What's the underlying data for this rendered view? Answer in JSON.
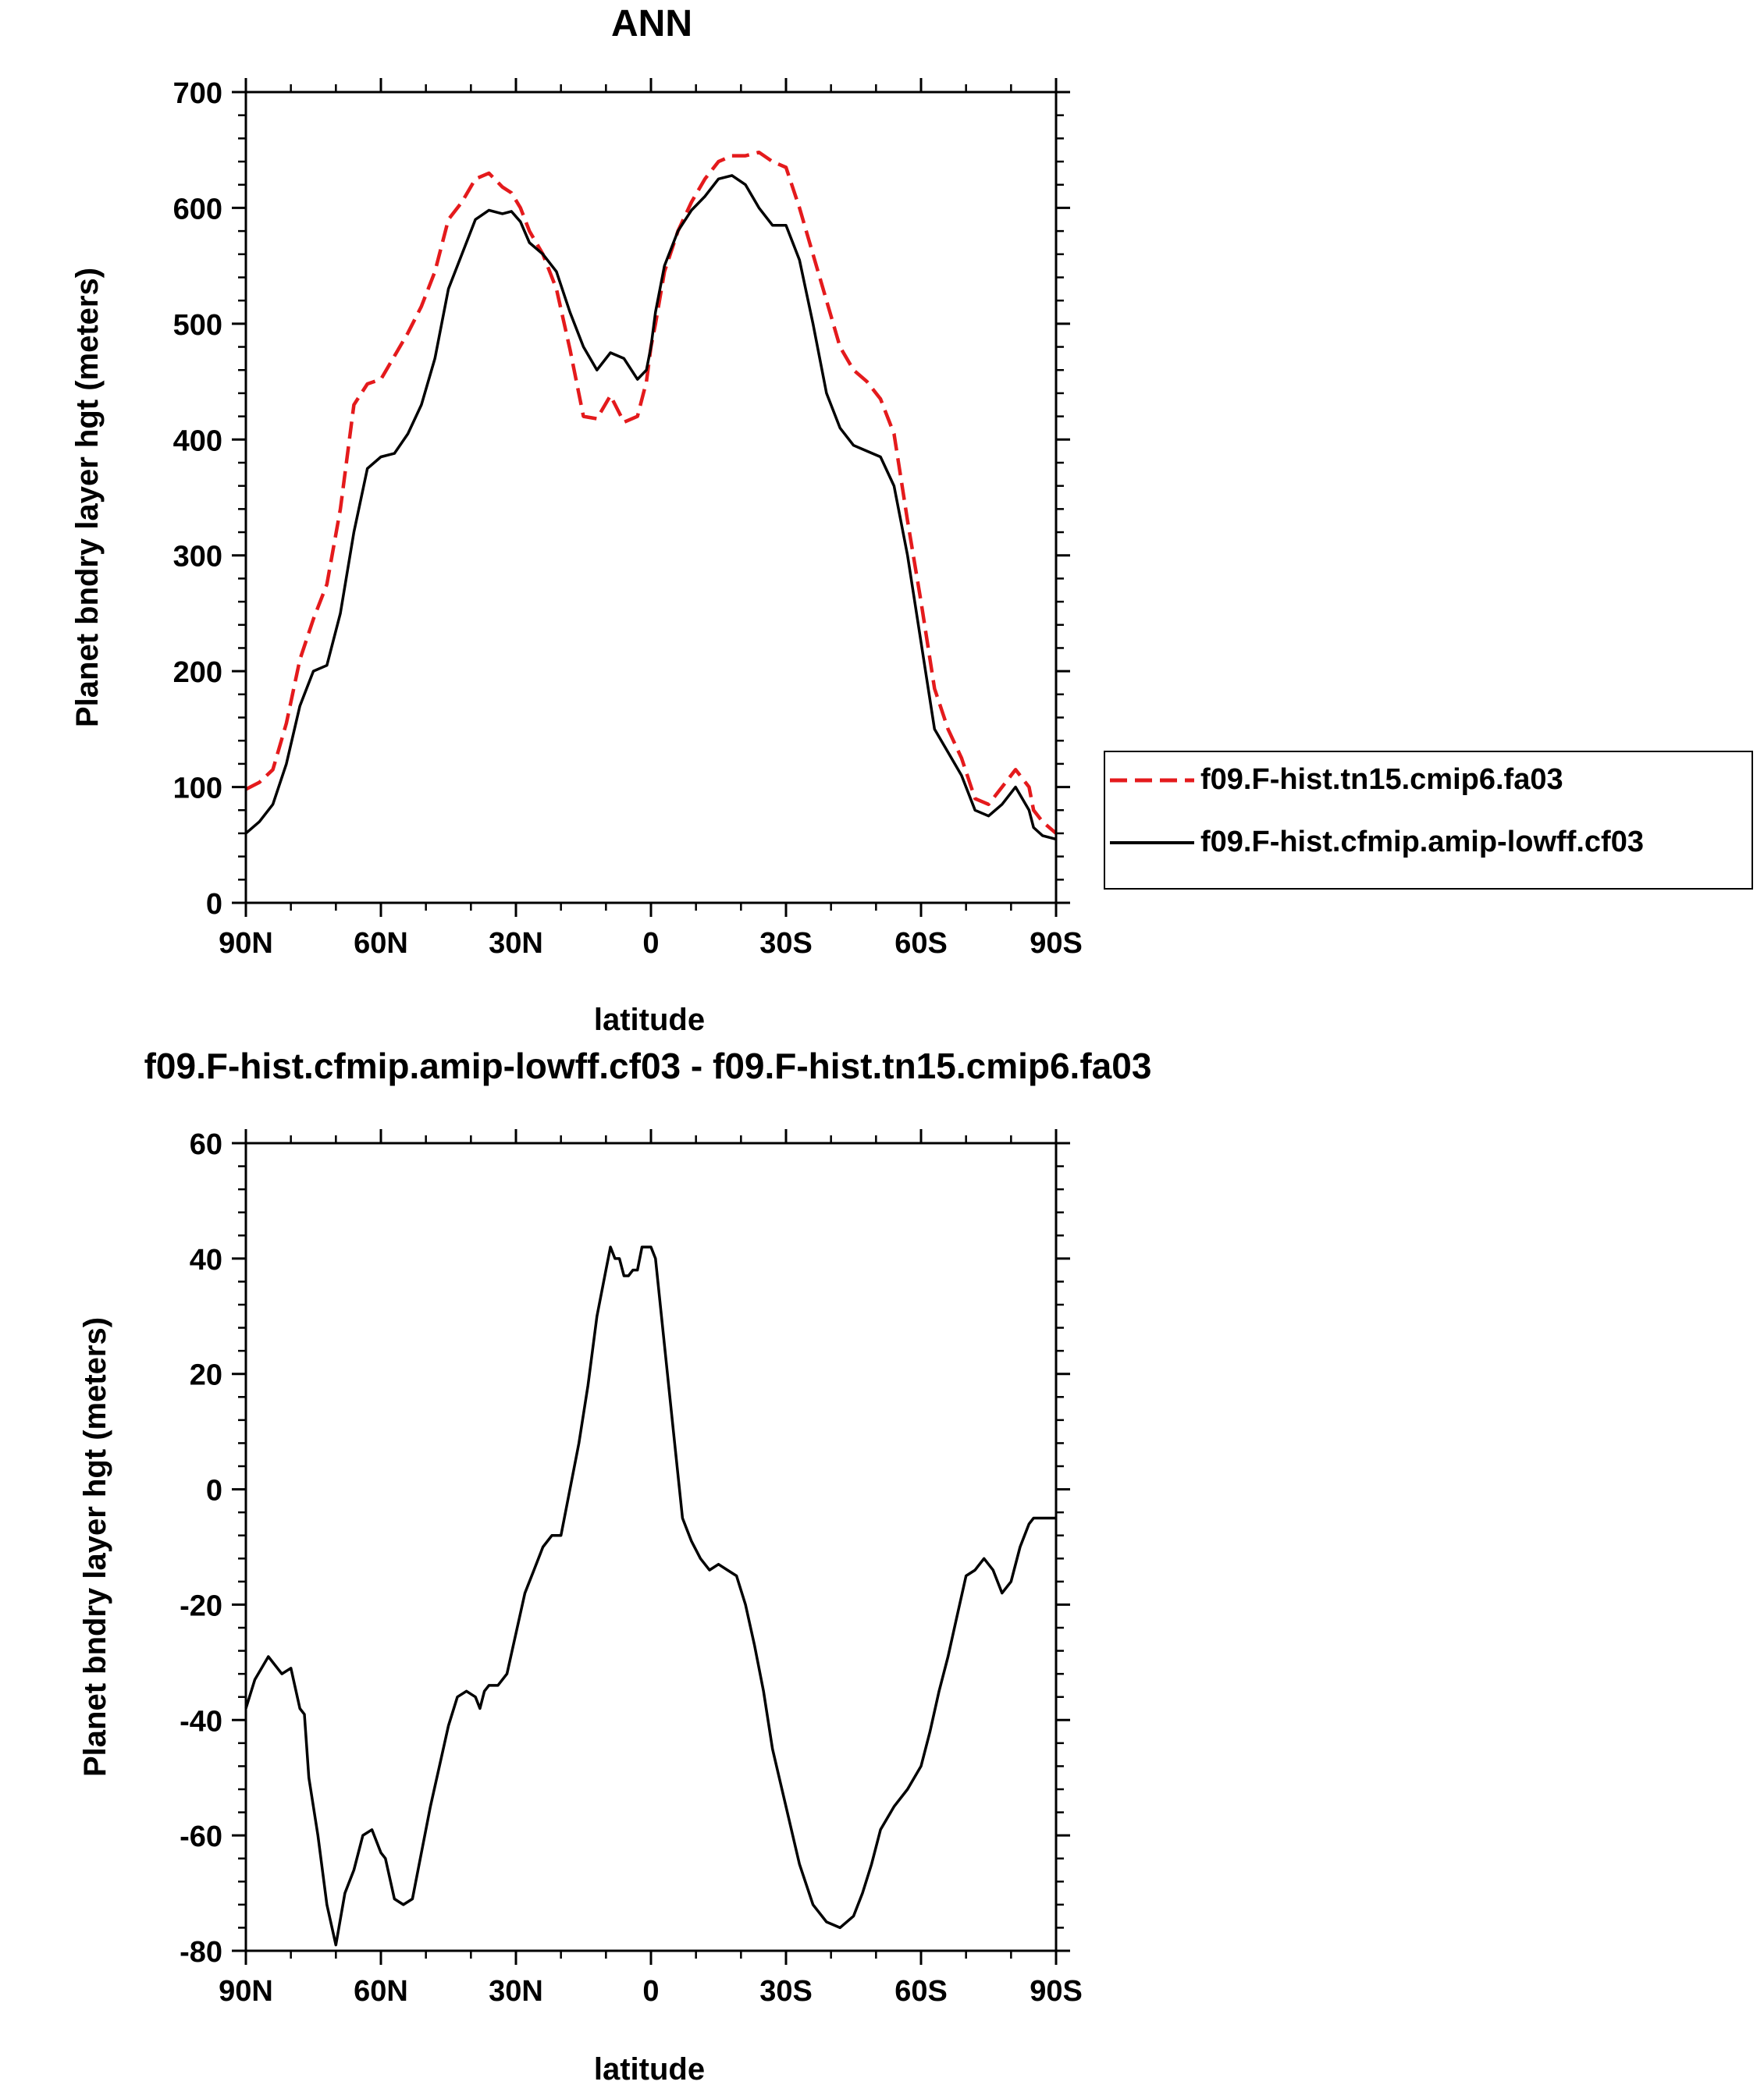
{
  "chart_data": [
    {
      "type": "line",
      "title": "ANN",
      "xlabel": "latitude",
      "ylabel": "Planet bndry layer hgt (meters)",
      "xlim": [
        90,
        -90
      ],
      "ylim": [
        0,
        700
      ],
      "xtick_values": [
        90,
        60,
        30,
        0,
        -30,
        -60,
        -90
      ],
      "xtick_labels": [
        "90N",
        "60N",
        "30N",
        "0",
        "30S",
        "60S",
        "90S"
      ],
      "ytick_values": [
        0,
        100,
        200,
        300,
        400,
        500,
        600,
        700
      ],
      "ytick_labels": [
        "0",
        "100",
        "200",
        "300",
        "400",
        "500",
        "600",
        "700"
      ],
      "legend_position": "right",
      "series": [
        {
          "name": "f09.F-hist.tn15.cmip6.fa03",
          "color": "#e41a1c",
          "dash": "dashed",
          "x": [
            90,
            87,
            84,
            81,
            78,
            75,
            72,
            69,
            66,
            63,
            60,
            57,
            54,
            51,
            48,
            45,
            42,
            39,
            36,
            33,
            31,
            29,
            27,
            24,
            21,
            18,
            15,
            12,
            9,
            6,
            3,
            1,
            0,
            -1,
            -3,
            -6,
            -9,
            -12,
            -15,
            -18,
            -21,
            -24,
            -27,
            -30,
            -33,
            -36,
            -39,
            -42,
            -45,
            -48,
            -51,
            -54,
            -57,
            -60,
            -63,
            -66,
            -69,
            -72,
            -75,
            -78,
            -81,
            -84,
            -85,
            -87,
            -90
          ],
          "y": [
            98,
            104,
            115,
            155,
            210,
            245,
            275,
            340,
            430,
            448,
            452,
            472,
            492,
            515,
            545,
            590,
            605,
            625,
            630,
            618,
            613,
            600,
            580,
            560,
            530,
            478,
            420,
            418,
            438,
            415,
            420,
            450,
            480,
            500,
            545,
            580,
            605,
            625,
            640,
            645,
            645,
            648,
            640,
            635,
            600,
            560,
            520,
            480,
            460,
            450,
            435,
            405,
            330,
            260,
            185,
            150,
            125,
            90,
            85,
            100,
            115,
            100,
            80,
            70,
            60
          ]
        },
        {
          "name": "f09.F-hist.cfmip.amip-lowff.cf03",
          "color": "#000000",
          "dash": "solid",
          "x": [
            90,
            87,
            84,
            81,
            78,
            75,
            72,
            69,
            66,
            63,
            60,
            57,
            54,
            51,
            48,
            45,
            42,
            39,
            36,
            33,
            31,
            29,
            27,
            24,
            21,
            18,
            15,
            12,
            9,
            6,
            3,
            1,
            0,
            -1,
            -3,
            -6,
            -9,
            -12,
            -15,
            -18,
            -21,
            -24,
            -27,
            -30,
            -33,
            -36,
            -39,
            -42,
            -45,
            -48,
            -51,
            -54,
            -57,
            -60,
            -63,
            -66,
            -69,
            -72,
            -75,
            -78,
            -81,
            -84,
            -85,
            -87,
            -90
          ],
          "y": [
            60,
            70,
            85,
            120,
            170,
            200,
            205,
            250,
            320,
            375,
            385,
            388,
            405,
            430,
            470,
            530,
            560,
            590,
            598,
            595,
            597,
            588,
            570,
            560,
            545,
            510,
            480,
            460,
            475,
            470,
            452,
            460,
            480,
            510,
            550,
            580,
            598,
            610,
            625,
            628,
            620,
            600,
            585,
            585,
            555,
            500,
            440,
            410,
            395,
            390,
            385,
            360,
            300,
            225,
            150,
            130,
            110,
            80,
            75,
            85,
            100,
            80,
            65,
            58,
            55
          ]
        }
      ]
    },
    {
      "type": "line",
      "title": "f09.F-hist.cfmip.amip-lowff.cf03 - f09.F-hist.tn15.cmip6.fa03",
      "xlabel": "latitude",
      "ylabel": "Planet bndry layer hgt (meters)",
      "xlim": [
        90,
        -90
      ],
      "ylim": [
        -80,
        60
      ],
      "xtick_values": [
        90,
        60,
        30,
        0,
        -30,
        -60,
        -90
      ],
      "xtick_labels": [
        "90N",
        "60N",
        "30N",
        "0",
        "30S",
        "60S",
        "90S"
      ],
      "ytick_values": [
        -80,
        -60,
        -40,
        -20,
        0,
        20,
        40,
        60
      ],
      "ytick_labels": [
        "-80",
        "-60",
        "-40",
        "-20",
        "0",
        "20",
        "40",
        "60"
      ],
      "series": [
        {
          "name": "f09.F-hist.cfmip.amip-lowff.cf03 - f09.F-hist.tn15.cmip6.fa03",
          "color": "#000000",
          "dash": "solid",
          "x": [
            90,
            88,
            85,
            82,
            80,
            78,
            77,
            76,
            74,
            72,
            70,
            68,
            66,
            64,
            62,
            60,
            59,
            57,
            55,
            53,
            51,
            49,
            47,
            45,
            43,
            41,
            39,
            38,
            37,
            36,
            34,
            32,
            30,
            28,
            26,
            24,
            22,
            20,
            18,
            16,
            14,
            12,
            10,
            9,
            8,
            7,
            6,
            5,
            4,
            3,
            2,
            1,
            0,
            -1,
            -3,
            -5,
            -7,
            -8,
            -9,
            -11,
            -13,
            -15,
            -17,
            -19,
            -21,
            -23,
            -25,
            -27,
            -30,
            -33,
            -36,
            -39,
            -42,
            -45,
            -47,
            -49,
            -51,
            -54,
            -57,
            -60,
            -62,
            -64,
            -66,
            -68,
            -70,
            -72,
            -74,
            -76,
            -78,
            -80,
            -82,
            -84,
            -85,
            -87,
            -89,
            -90
          ],
          "y": [
            -38,
            -33,
            -29,
            -32,
            -31,
            -38,
            -39,
            -50,
            -60,
            -72,
            -79,
            -70,
            -66,
            -60,
            -59,
            -63,
            -64,
            -71,
            -72,
            -71,
            -63,
            -55,
            -48,
            -41,
            -36,
            -35,
            -36,
            -38,
            -35,
            -34,
            -34,
            -32,
            -25,
            -18,
            -14,
            -10,
            -8,
            -8,
            0,
            8,
            18,
            30,
            38,
            42,
            40,
            40,
            37,
            37,
            38,
            38,
            42,
            42,
            42,
            40,
            25,
            10,
            -5,
            -7,
            -9,
            -12,
            -14,
            -13,
            -14,
            -15,
            -20,
            -27,
            -35,
            -45,
            -55,
            -65,
            -72,
            -75,
            -76,
            -74,
            -70,
            -65,
            -59,
            -55,
            -52,
            -48,
            -42,
            -35,
            -29,
            -22,
            -15,
            -14,
            -12,
            -14,
            -18,
            -16,
            -10,
            -6,
            -5,
            -5,
            -5,
            -5
          ]
        }
      ]
    }
  ]
}
